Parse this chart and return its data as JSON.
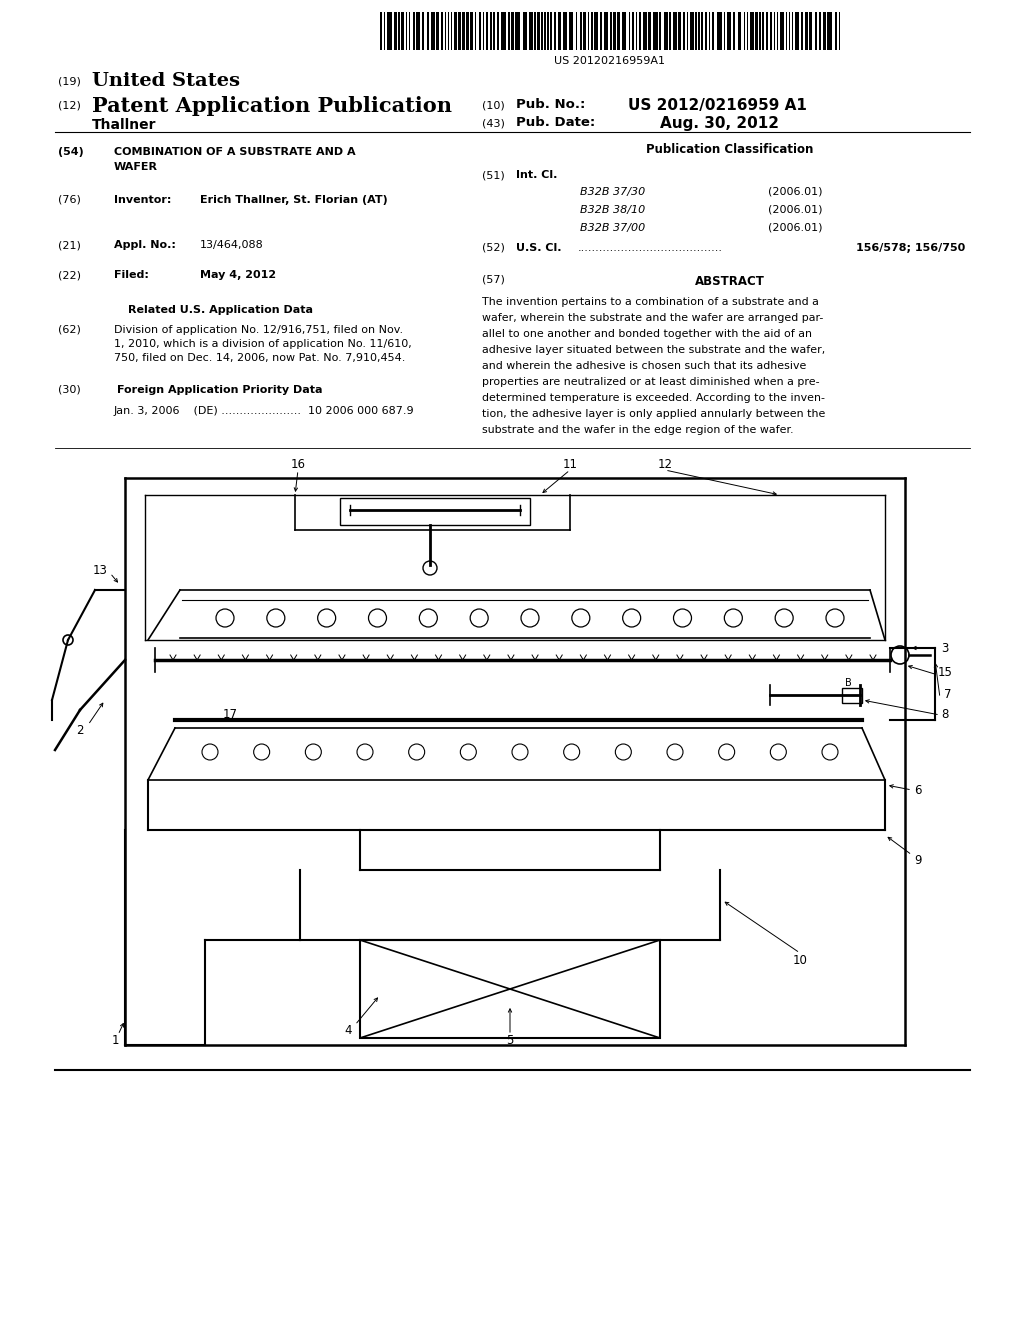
{
  "bg_color": "#ffffff",
  "page_width": 10.24,
  "page_height": 13.2,
  "barcode_text": "US 20120216959A1",
  "abstract_lines": [
    "The invention pertains to a combination of a substrate and a",
    "wafer, wherein the substrate and the wafer are arranged par-",
    "allel to one another and bonded together with the aid of an",
    "adhesive layer situated between the substrate and the wafer,",
    "and wherein the adhesive is chosen such that its adhesive",
    "properties are neutralized or at least diminished when a pre-",
    "determined temperature is exceeded. According to the inven-",
    "tion, the adhesive layer is only applied annularly between the",
    "substrate and the wafer in the edge region of the wafer."
  ],
  "field_51_items": [
    [
      "B32B 37/30",
      "(2006.01)"
    ],
    [
      "B32B 38/10",
      "(2006.01)"
    ],
    [
      "B32B 37/00",
      "(2006.01)"
    ]
  ]
}
